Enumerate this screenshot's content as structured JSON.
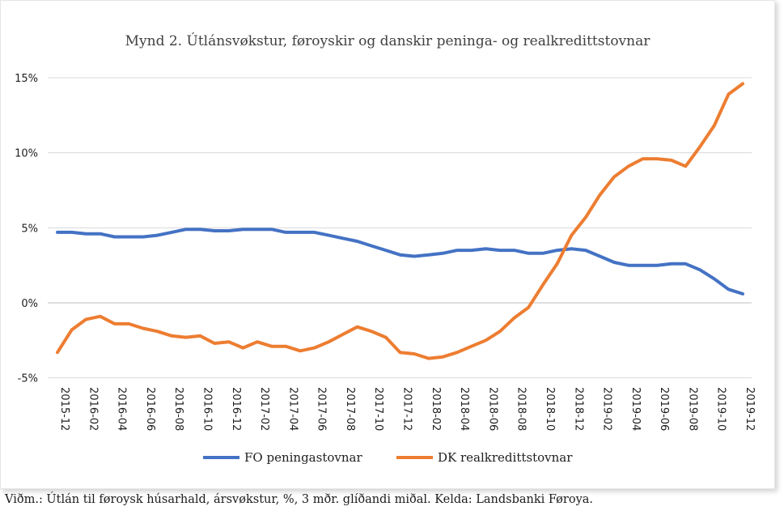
{
  "caption": "Viðm.: Útlán til føroysk húsarhald, ársvøkstur, %, 3 mðr. glíðandi miðal. Kelda: Landsbanki Føroya.",
  "colors": {
    "fo": "#4472C4",
    "dk": "#ED7D31",
    "grid": "#d9d9d9"
  },
  "chart_data": {
    "type": "line",
    "title": "Mynd 2. Útlánsvøkstur, føroyskir og danskir peninga- og realkredittstovnar",
    "xlabel": "",
    "ylabel": "",
    "ylim": [
      -5,
      15
    ],
    "y_ticks": [
      15,
      10,
      5,
      0,
      -5
    ],
    "y_tick_labels": [
      "15%",
      "10%",
      "5%",
      "0%",
      "-5%"
    ],
    "grid": true,
    "legend": "bottom",
    "x": [
      "2015-12",
      "2016-01",
      "2016-02",
      "2016-03",
      "2016-04",
      "2016-05",
      "2016-06",
      "2016-07",
      "2016-08",
      "2016-09",
      "2016-10",
      "2016-11",
      "2016-12",
      "2017-01",
      "2017-02",
      "2017-03",
      "2017-04",
      "2017-05",
      "2017-06",
      "2017-07",
      "2017-08",
      "2017-09",
      "2017-10",
      "2017-11",
      "2017-12",
      "2018-01",
      "2018-02",
      "2018-03",
      "2018-04",
      "2018-05",
      "2018-06",
      "2018-07",
      "2018-08",
      "2018-09",
      "2018-10",
      "2018-11",
      "2018-12",
      "2019-01",
      "2019-02",
      "2019-03",
      "2019-04",
      "2019-05",
      "2019-06",
      "2019-07",
      "2019-08",
      "2019-09",
      "2019-10",
      "2019-11",
      "2019-12"
    ],
    "x_tick_labels": [
      "2015-12",
      "2016-02",
      "2016-04",
      "2016-06",
      "2016-08",
      "2016-10",
      "2016-12",
      "2017-02",
      "2017-04",
      "2017-06",
      "2017-08",
      "2017-10",
      "2017-12",
      "2018-02",
      "2018-04",
      "2018-06",
      "2018-08",
      "2018-10",
      "2018-12",
      "2019-02",
      "2019-04",
      "2019-06",
      "2019-08",
      "2019-10",
      "2019-12"
    ],
    "series": [
      {
        "name": "FO peningastovnar",
        "color": "#4472C4",
        "values": [
          4.7,
          4.7,
          4.6,
          4.6,
          4.4,
          4.4,
          4.4,
          4.5,
          4.7,
          4.9,
          4.9,
          4.8,
          4.8,
          4.9,
          4.9,
          4.9,
          4.7,
          4.7,
          4.7,
          4.5,
          4.3,
          4.1,
          3.8,
          3.5,
          3.2,
          3.1,
          3.2,
          3.3,
          3.5,
          3.5,
          3.6,
          3.5,
          3.5,
          3.3,
          3.3,
          3.5,
          3.6,
          3.5,
          3.1,
          2.7,
          2.5,
          2.5,
          2.5,
          2.6,
          2.6,
          2.2,
          1.6,
          0.9,
          0.6
        ]
      },
      {
        "name": "DK realkredittstovnar",
        "color": "#ED7D31",
        "values": [
          -3.3,
          -1.8,
          -1.1,
          -0.9,
          -1.4,
          -1.4,
          -1.7,
          -1.9,
          -2.2,
          -2.3,
          -2.2,
          -2.7,
          -2.6,
          -3.0,
          -2.6,
          -2.9,
          -2.9,
          -3.2,
          -3.0,
          -2.6,
          -2.1,
          -1.6,
          -1.9,
          -2.3,
          -3.3,
          -3.4,
          -3.7,
          -3.6,
          -3.3,
          -2.9,
          -2.5,
          -1.9,
          -1.0,
          -0.3,
          1.2,
          2.6,
          4.5,
          5.7,
          7.2,
          8.4,
          9.1,
          9.6,
          9.6,
          9.5,
          9.1,
          10.4,
          11.8,
          13.9,
          14.6
        ]
      }
    ]
  }
}
